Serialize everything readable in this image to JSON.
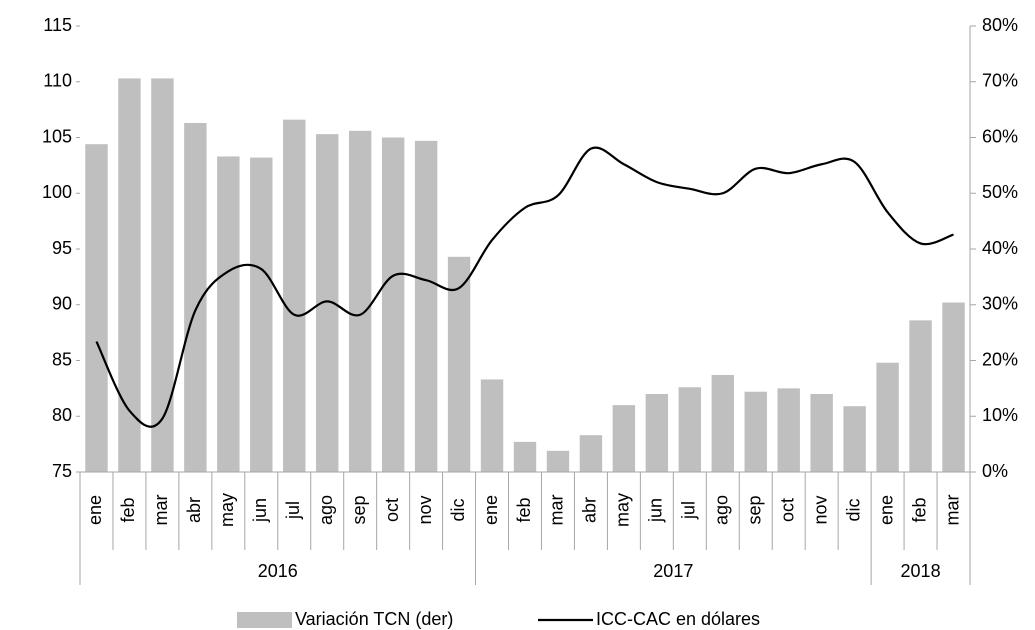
{
  "chart_data": {
    "type": "bar_line",
    "categories": [
      "ene",
      "feb",
      "mar",
      "abr",
      "may",
      "jun",
      "jul",
      "ago",
      "sep",
      "oct",
      "nov",
      "dic",
      "ene",
      "feb",
      "mar",
      "abr",
      "may",
      "jun",
      "jul",
      "ago",
      "sep",
      "oct",
      "nov",
      "dic",
      "ene",
      "feb",
      "mar"
    ],
    "years": [
      "2016",
      "2016",
      "2016",
      "2016",
      "2016",
      "2016",
      "2016",
      "2016",
      "2016",
      "2016",
      "2016",
      "2016",
      "2017",
      "2017",
      "2017",
      "2017",
      "2017",
      "2017",
      "2017",
      "2017",
      "2017",
      "2017",
      "2017",
      "2017",
      "2018",
      "2018",
      "2018"
    ],
    "series": [
      {
        "name": "Variación TCN (der)",
        "type": "bar",
        "axis": "y2",
        "color": "#bfbfbf",
        "values": [
          58.8,
          70.6,
          70.6,
          62.6,
          56.6,
          56.4,
          63.2,
          60.6,
          61.2,
          60,
          59.4,
          38.6,
          16.6,
          5.4,
          3.8,
          6.6,
          12,
          14,
          15.2,
          17.4,
          14.4,
          15,
          14,
          11.8,
          19.6,
          27.2,
          30.4
        ]
      },
      {
        "name": "ICC-CAC en dólares",
        "type": "line",
        "axis": "y",
        "color": "#000000",
        "values": [
          86.7,
          80.5,
          79.8,
          89.5,
          93,
          93.2,
          89.1,
          90.3,
          89.1,
          92.6,
          92.2,
          91.5,
          95.8,
          98.7,
          99.8,
          104,
          102.6,
          101,
          100.4,
          100,
          102.2,
          101.8,
          102.6,
          102.8,
          98.3,
          95.5,
          96.3
        ]
      }
    ],
    "ylim": [
      75,
      115
    ],
    "yticks": [
      75,
      80,
      85,
      90,
      95,
      100,
      105,
      110,
      115
    ],
    "y2lim": [
      0,
      80
    ],
    "y2ticks": [
      {
        "value": 0,
        "label": "0%"
      },
      {
        "value": 10,
        "label": "10%"
      },
      {
        "value": 20,
        "label": "20%"
      },
      {
        "value": 30,
        "label": "30%"
      },
      {
        "value": 40,
        "label": "40%"
      },
      {
        "value": 50,
        "label": "50%"
      },
      {
        "value": 60,
        "label": "60%"
      },
      {
        "value": 70,
        "label": "70%"
      },
      {
        "value": 80,
        "label": "80%"
      }
    ],
    "legend": "bottom"
  }
}
